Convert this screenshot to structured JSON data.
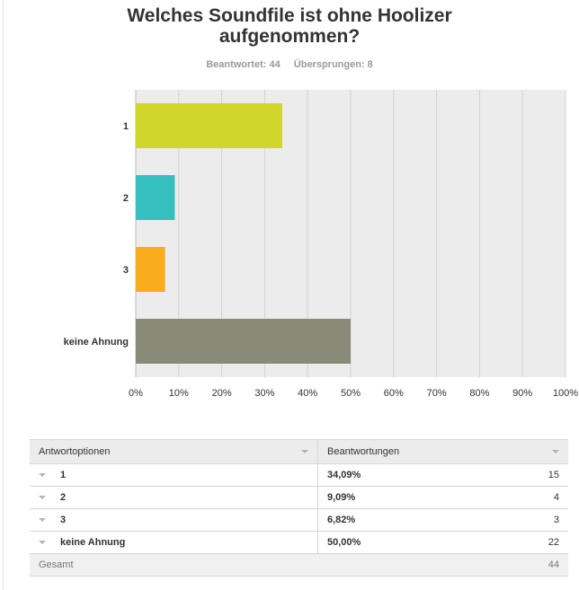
{
  "question": {
    "title_line1": "Welches Soundfile ist ohne Hoolizer",
    "title_line2": "aufgenommen?",
    "answered_label": "Beantwortet: 44",
    "skipped_label": "Übersprungen: 8"
  },
  "chart_data": {
    "type": "bar",
    "orientation": "horizontal",
    "categories": [
      "1",
      "2",
      "3",
      "keine Ahnung"
    ],
    "values": [
      34.09,
      9.09,
      6.82,
      50.0
    ],
    "colors": [
      "#d1d62a",
      "#36c0c0",
      "#f8ac1e",
      "#8a8a78"
    ],
    "xlim": [
      0,
      100
    ],
    "xticks": [
      "0%",
      "10%",
      "20%",
      "30%",
      "40%",
      "50%",
      "60%",
      "70%",
      "80%",
      "90%",
      "100%"
    ],
    "grid": true,
    "plot_background": "#ececec",
    "title": "",
    "xlabel": "",
    "ylabel": ""
  },
  "table": {
    "header_options": "Antwortoptionen",
    "header_responses": "Beantwortungen",
    "rows": [
      {
        "option": "1",
        "percent": "34,09%",
        "count": "15"
      },
      {
        "option": "2",
        "percent": "9,09%",
        "count": "4"
      },
      {
        "option": "3",
        "percent": "6,82%",
        "count": "3"
      },
      {
        "option": "keine Ahnung",
        "percent": "50,00%",
        "count": "22"
      }
    ],
    "total_label": "Gesamt",
    "total_count": "44"
  }
}
